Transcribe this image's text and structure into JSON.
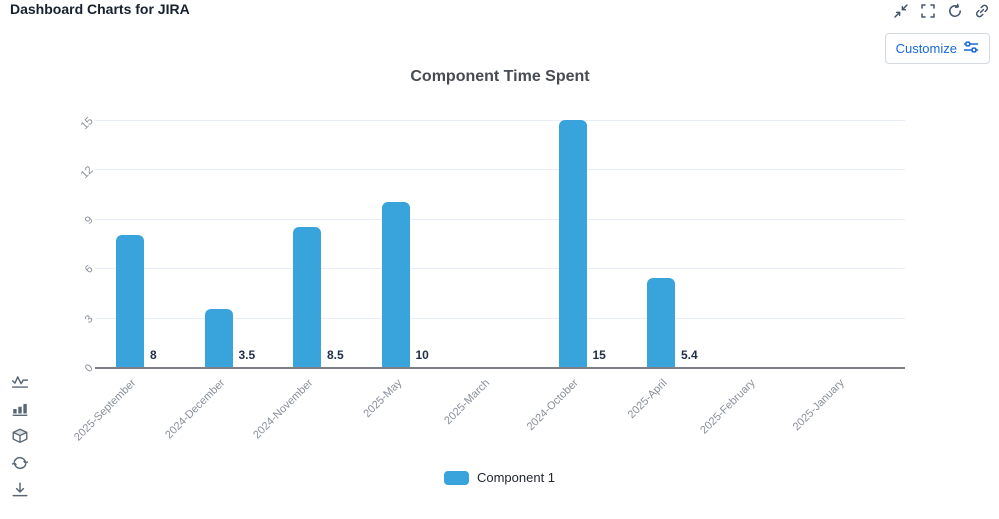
{
  "header": {
    "title": "Dashboard Charts for JIRA",
    "customize_label": "Customize",
    "icon_names": [
      "collapse-icon",
      "expand-icon",
      "reset-icon",
      "link-icon"
    ]
  },
  "side_toolbar": {
    "icon_names": [
      "activity-chart-icon",
      "bar-chart-icon",
      "cube-icon",
      "sync-icon",
      "download-icon"
    ]
  },
  "chart_data": {
    "type": "bar",
    "title": "Component Time Spent",
    "categories": [
      "2025-September",
      "2024-December",
      "2024-November",
      "2025-May",
      "2025-March",
      "2024-October",
      "2025-April",
      "2025-February",
      "2025-January"
    ],
    "series": [
      {
        "name": "Component 1",
        "values": [
          8,
          3.5,
          8.5,
          10,
          0,
          15,
          5.4,
          0,
          0
        ]
      }
    ],
    "value_labels": [
      "8",
      "3.5",
      "8.5",
      "10",
      "",
      "15",
      "5.4",
      "",
      ""
    ],
    "y_ticks": [
      0,
      3,
      6,
      9,
      12,
      15
    ],
    "ylim": [
      0,
      15
    ],
    "grid": true,
    "legend_position": "bottom",
    "bar_color": "#39A3DC",
    "gridline_color": "#e9edf5",
    "axis_line_color": "#7c8086",
    "axis_label_color": "#898f99",
    "value_label_color": "#20304a"
  },
  "colors": {
    "accent_blue": "#1868DB",
    "icon_gray": "#44546F",
    "toolbar_gray": "#596773"
  }
}
